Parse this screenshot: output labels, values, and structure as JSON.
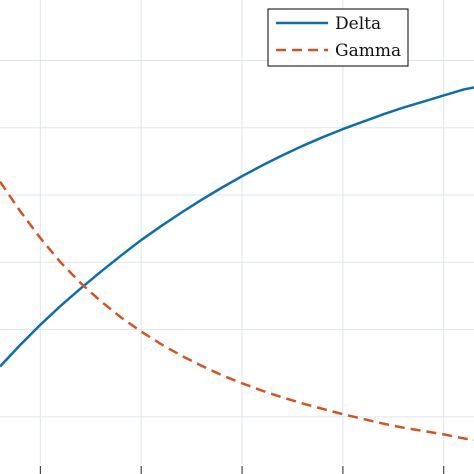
{
  "chart_data": {
    "type": "line",
    "title": "",
    "xlabel": "",
    "ylabel": "",
    "grid": true,
    "legend_placement": "top-right",
    "xlim": [
      0,
      4.7
    ],
    "ylim": [
      0,
      6.9
    ],
    "x_ticks": [
      0.4,
      1.4,
      2.4,
      3.4,
      4.4
    ],
    "y_gridlines": [
      0.7,
      2.0,
      3.0,
      4.0,
      5.0,
      6.0
    ],
    "series": [
      {
        "name": "Delta",
        "color": "#0b6fad",
        "dash": "solid",
        "x": [
          0,
          0.2,
          0.4,
          0.6,
          0.8,
          1.0,
          1.2,
          1.4,
          1.6,
          1.8,
          2.0,
          2.2,
          2.4,
          2.6,
          2.8,
          3.0,
          3.2,
          3.4,
          3.6,
          3.8,
          4.0,
          4.2,
          4.4,
          4.6,
          4.7
        ],
        "y": [
          1.45,
          1.77,
          2.07,
          2.35,
          2.61,
          2.86,
          3.1,
          3.33,
          3.54,
          3.74,
          3.93,
          4.11,
          4.28,
          4.44,
          4.59,
          4.73,
          4.86,
          4.98,
          5.09,
          5.2,
          5.3,
          5.39,
          5.48,
          5.57,
          5.6
        ]
      },
      {
        "name": "Gamma",
        "color": "#d4541f",
        "dash": "dashed",
        "x": [
          0,
          0.2,
          0.4,
          0.6,
          0.8,
          1.0,
          1.2,
          1.4,
          1.6,
          1.8,
          2.0,
          2.2,
          2.4,
          2.6,
          2.8,
          3.0,
          3.2,
          3.4,
          3.6,
          3.8,
          4.0,
          4.2,
          4.4,
          4.6,
          4.7
        ],
        "y": [
          4.2,
          3.76,
          3.36,
          3.0,
          2.69,
          2.42,
          2.18,
          1.97,
          1.78,
          1.61,
          1.46,
          1.32,
          1.2,
          1.09,
          0.99,
          0.9,
          0.82,
          0.74,
          0.67,
          0.6,
          0.54,
          0.49,
          0.44,
          0.38,
          0.36
        ]
      }
    ]
  }
}
